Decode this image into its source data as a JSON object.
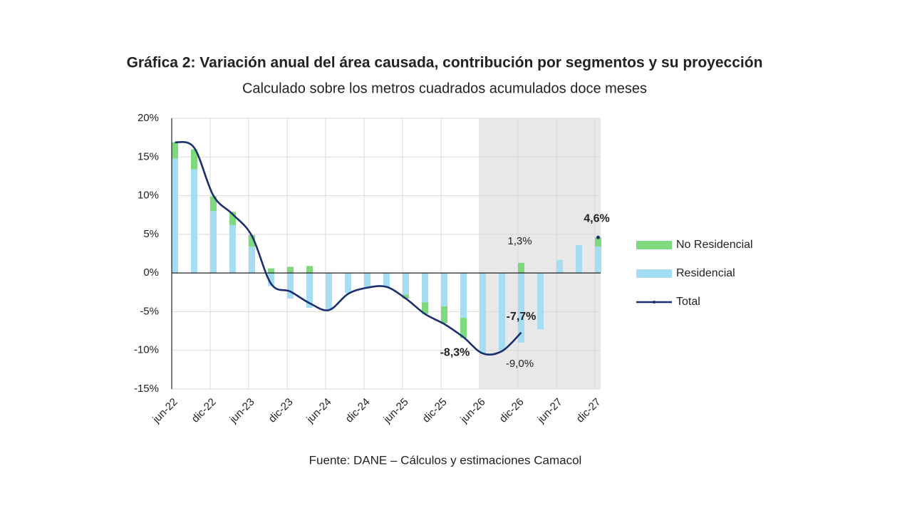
{
  "chart_data": {
    "type": "bar",
    "title": "Gráfica 2: Variación anual del área causada, contribución por segmentos y su proyección",
    "subtitle": "Calculado sobre los metros cuadrados acumulados doce meses",
    "source": "Fuente: DANE – Cálculos y estimaciones Camacol",
    "categories": [
      "jun-22",
      null,
      "dic-22",
      null,
      "jun-23",
      null,
      "dic-23",
      null,
      "jun-24",
      null,
      "dic-24",
      null,
      "jun-25",
      null,
      "dic-25",
      null,
      "jun-26",
      null,
      "dic-26",
      null,
      "jun-27",
      null,
      "dic-27"
    ],
    "shaded_from": "jun-26",
    "stacked": true,
    "grid": true,
    "legend": "right",
    "ylim": [
      -15,
      20
    ],
    "yticks": [
      {
        "value": -15,
        "label": "-15%"
      },
      {
        "value": -10,
        "label": "-10%"
      },
      {
        "value": -5,
        "label": "-5%"
      },
      {
        "value": 0,
        "label": "0%"
      },
      {
        "value": 5,
        "label": "5%"
      },
      {
        "value": 10,
        "label": "10%"
      },
      {
        "value": 15,
        "label": "15%"
      },
      {
        "value": 20,
        "label": "20%"
      }
    ],
    "series": [
      {
        "name": "No Residencial",
        "type": "bar",
        "color": "#7ed87e",
        "values": [
          2.1,
          2.6,
          1.9,
          1.7,
          1.5,
          0.6,
          0.8,
          0.9,
          0,
          0,
          0,
          0,
          -0.5,
          -1.5,
          -2.2,
          -2.6,
          0,
          0,
          1.3,
          0,
          0,
          0,
          1.2
        ],
        "value_labels": [
          null,
          null,
          null,
          null,
          null,
          null,
          null,
          null,
          null,
          null,
          null,
          null,
          null,
          null,
          null,
          null,
          null,
          null,
          "1,3%",
          null,
          null,
          null,
          null
        ]
      },
      {
        "name": "Residencial",
        "type": "bar",
        "color": "#a7dcf5",
        "values": [
          14.8,
          13.4,
          8.0,
          6.2,
          3.4,
          -1.7,
          -3.3,
          -4.5,
          -4.8,
          -2.6,
          -2.0,
          -1.8,
          -2.8,
          -3.8,
          -4.3,
          -5.8,
          -10.4,
          -10.0,
          -9.0,
          -7.3,
          1.7,
          3.6,
          3.4
        ],
        "value_labels": [
          null,
          null,
          null,
          null,
          null,
          null,
          null,
          null,
          null,
          null,
          null,
          null,
          null,
          null,
          null,
          null,
          null,
          null,
          "-9,0%",
          null,
          null,
          null,
          null
        ]
      },
      {
        "name": "Total",
        "type": "line",
        "color": "#1b2f6e",
        "values": [
          16.9,
          16.2,
          10.0,
          7.6,
          4.8,
          -1.4,
          -2.4,
          -3.9,
          -4.8,
          -2.7,
          -1.9,
          -1.8,
          -3.3,
          -5.3,
          -6.6,
          -8.3,
          -10.4,
          -10.1,
          -7.7,
          null,
          null,
          null,
          4.6
        ],
        "value_labels": [
          null,
          null,
          null,
          null,
          null,
          null,
          null,
          null,
          null,
          null,
          null,
          null,
          null,
          null,
          null,
          "-8,3%",
          null,
          null,
          "-7,7%",
          null,
          null,
          null,
          "4,6%"
        ]
      }
    ]
  }
}
